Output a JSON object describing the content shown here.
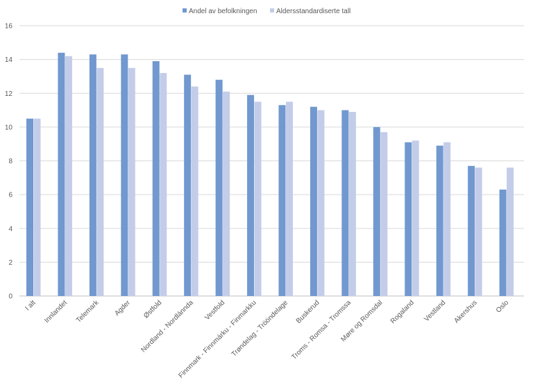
{
  "chart_data": {
    "type": "bar",
    "categories": [
      "I alt",
      "Innlandet",
      "Telemark",
      "Agder",
      "Østfold",
      "Nordland - Nordlánnda",
      "Vestfold",
      "Finnmark - Finnmárku - Finmarkku",
      "Trøndelag - Trööndelage",
      "Buskerud",
      "Troms - Romsa - Tromssa",
      "Møre og Romsdal",
      "Rogaland",
      "Vestland",
      "Akershus",
      "Oslo"
    ],
    "series": [
      {
        "name": "Andel av befolkningen",
        "color": "#7198cf",
        "values": [
          10.5,
          14.4,
          14.3,
          14.3,
          13.9,
          13.1,
          12.8,
          11.9,
          11.3,
          11.2,
          11.0,
          10.0,
          9.1,
          8.9,
          7.7,
          6.3
        ]
      },
      {
        "name": "Aldersstandardiserte tall",
        "color": "#c3cde9",
        "values": [
          10.5,
          14.2,
          13.5,
          13.5,
          13.2,
          12.4,
          12.1,
          11.5,
          11.5,
          11.0,
          10.9,
          9.7,
          9.2,
          9.1,
          7.6,
          7.6
        ]
      }
    ],
    "ylim": [
      0,
      16
    ],
    "yticks": [
      0,
      2,
      4,
      6,
      8,
      10,
      12,
      14,
      16
    ],
    "grid": true,
    "legend_position": "top-center"
  }
}
